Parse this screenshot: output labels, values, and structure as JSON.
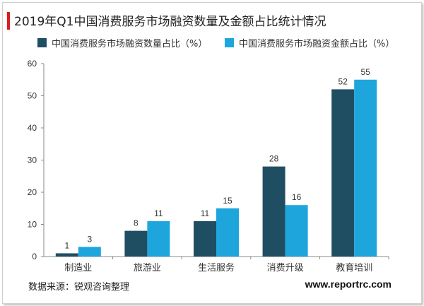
{
  "title": "2019年Q1中国消费服务市场融资数量及金额占比统计情况",
  "source": "数据来源：锐观咨询整理",
  "website": "www.reportrc.com",
  "colors": {
    "accent": "#d81e1e",
    "series1": "#1f4e63",
    "series2": "#1ea6dc",
    "axis": "#888888",
    "text": "#333333"
  },
  "chart_data": {
    "type": "bar",
    "categories": [
      "制造业",
      "旅游业",
      "生活服务",
      "消费升级",
      "教育培训"
    ],
    "series": [
      {
        "name": "中国消费服务市场融资数量占比（%）",
        "values": [
          1,
          8,
          11,
          28,
          52
        ]
      },
      {
        "name": "中国消费服务市场融资金额占比（%）",
        "values": [
          3,
          11,
          15,
          16,
          55
        ]
      }
    ],
    "ylim": [
      0,
      60
    ],
    "yticks": [
      0,
      10,
      20,
      30,
      40,
      50,
      60
    ],
    "grid": false,
    "legend": "top"
  }
}
